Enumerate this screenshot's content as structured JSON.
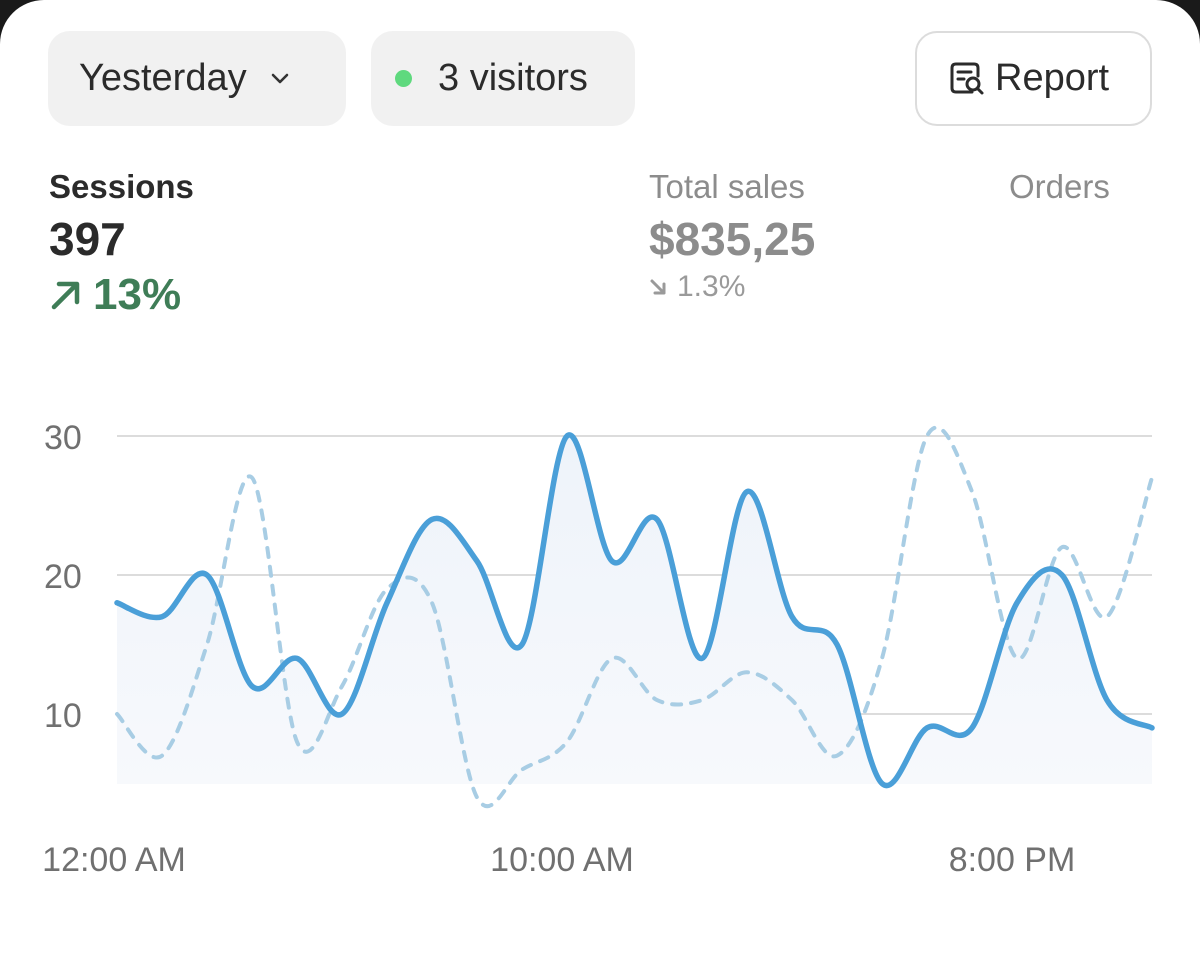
{
  "toolbar": {
    "period_label": "Yesterday",
    "visitors_label": "3 visitors",
    "report_label": "Report",
    "live_dot_color": "#5fd97e",
    "icons": {
      "period": "chevron-down-icon",
      "report": "report-search-icon"
    }
  },
  "metrics": {
    "sessions": {
      "label": "Sessions",
      "value": "397",
      "change": "13%",
      "direction": "up",
      "color": "#3f7d57"
    },
    "total_sales": {
      "label": "Total sales",
      "value": "$835,25",
      "change": "1.3%",
      "direction": "down"
    },
    "orders": {
      "label": "Orders"
    }
  },
  "chart_data": {
    "type": "line",
    "x_tick_labels": [
      "12:00 AM",
      "10:00 AM",
      "8:00 PM"
    ],
    "y_ticks": [
      10,
      20,
      30
    ],
    "ylim": [
      5,
      30
    ],
    "grid": true,
    "series": [
      {
        "style": "solid",
        "area_fill": true,
        "color": "#4a9fd8",
        "values": [
          18,
          17,
          20,
          12,
          14,
          10,
          18,
          24,
          21,
          15,
          30,
          21,
          24,
          14,
          26,
          17,
          15,
          5,
          9,
          9,
          18,
          20,
          11,
          9
        ]
      },
      {
        "style": "dashed",
        "area_fill": false,
        "color": "#a8cde4",
        "values": [
          10,
          7,
          15,
          27,
          8,
          12,
          19,
          18,
          4,
          6,
          8,
          14,
          11,
          11,
          13,
          11,
          7,
          14,
          30,
          26,
          14,
          22,
          17,
          27
        ]
      }
    ]
  }
}
